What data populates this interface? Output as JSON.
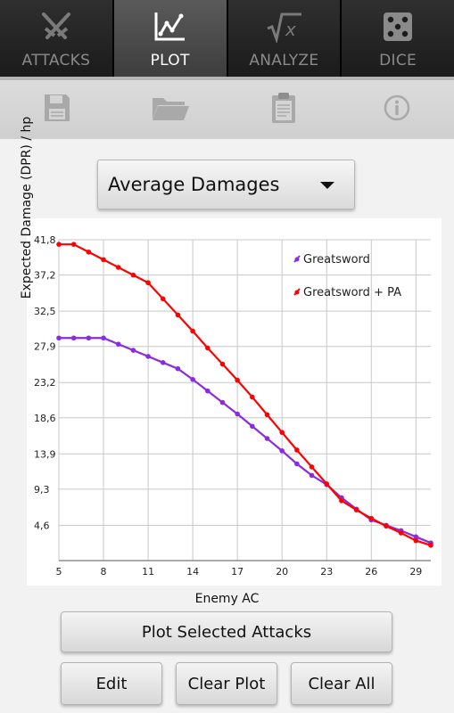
{
  "tabs": [
    {
      "label": "ATTACKS",
      "icon": "crossed-swords-icon",
      "active": false
    },
    {
      "label": "PLOT",
      "icon": "line-chart-icon",
      "active": true
    },
    {
      "label": "ANALYZE",
      "icon": "square-root-x-icon",
      "active": false
    },
    {
      "label": "DICE",
      "icon": "die-icon",
      "active": false
    }
  ],
  "toolbar": {
    "icons": [
      "save-icon",
      "folder-icon",
      "clipboard-icon",
      "info-icon"
    ]
  },
  "dropdown": {
    "selected": "Average Damages"
  },
  "chart_data": {
    "type": "line",
    "xlabel": "Enemy AC",
    "ylabel": "Expected Damage (DPR) / hp",
    "x_ticks": [
      5,
      8,
      11,
      14,
      17,
      20,
      23,
      26,
      29
    ],
    "y_ticks": [
      "4,6",
      "9,3",
      "13,9",
      "18,6",
      "23,2",
      "27,9",
      "32,5",
      "37,2",
      "41,8"
    ],
    "xlim": [
      5,
      30
    ],
    "ylim": [
      0,
      41.8
    ],
    "grid": true,
    "legend_position": "top-right",
    "x": [
      5,
      6,
      7,
      8,
      9,
      10,
      11,
      12,
      13,
      14,
      15,
      16,
      17,
      18,
      19,
      20,
      21,
      22,
      23,
      24,
      25,
      26,
      27,
      28,
      29,
      30
    ],
    "series": [
      {
        "name": "Greatsword",
        "color": "#8a2be2",
        "values": [
          29.0,
          29.0,
          29.0,
          29.0,
          28.2,
          27.4,
          26.6,
          25.8,
          25.0,
          23.6,
          22.1,
          20.6,
          19.1,
          17.5,
          15.9,
          14.3,
          12.6,
          11.1,
          9.9,
          8.2,
          6.7,
          5.3,
          4.6,
          3.9,
          3.1,
          2.3
        ]
      },
      {
        "name": "Greatsword + PA",
        "color": "#ff0000",
        "values": [
          41.2,
          41.2,
          40.2,
          39.2,
          38.2,
          37.2,
          36.2,
          34.1,
          32.0,
          29.9,
          27.7,
          25.6,
          23.5,
          21.3,
          19.0,
          16.7,
          14.4,
          12.2,
          10.0,
          7.8,
          6.6,
          5.5,
          4.5,
          3.6,
          2.6,
          2.0
        ]
      }
    ]
  },
  "buttons": {
    "plot_selected": "Plot Selected Attacks",
    "edit": "Edit",
    "clear_plot": "Clear Plot",
    "clear_all": "Clear All"
  }
}
